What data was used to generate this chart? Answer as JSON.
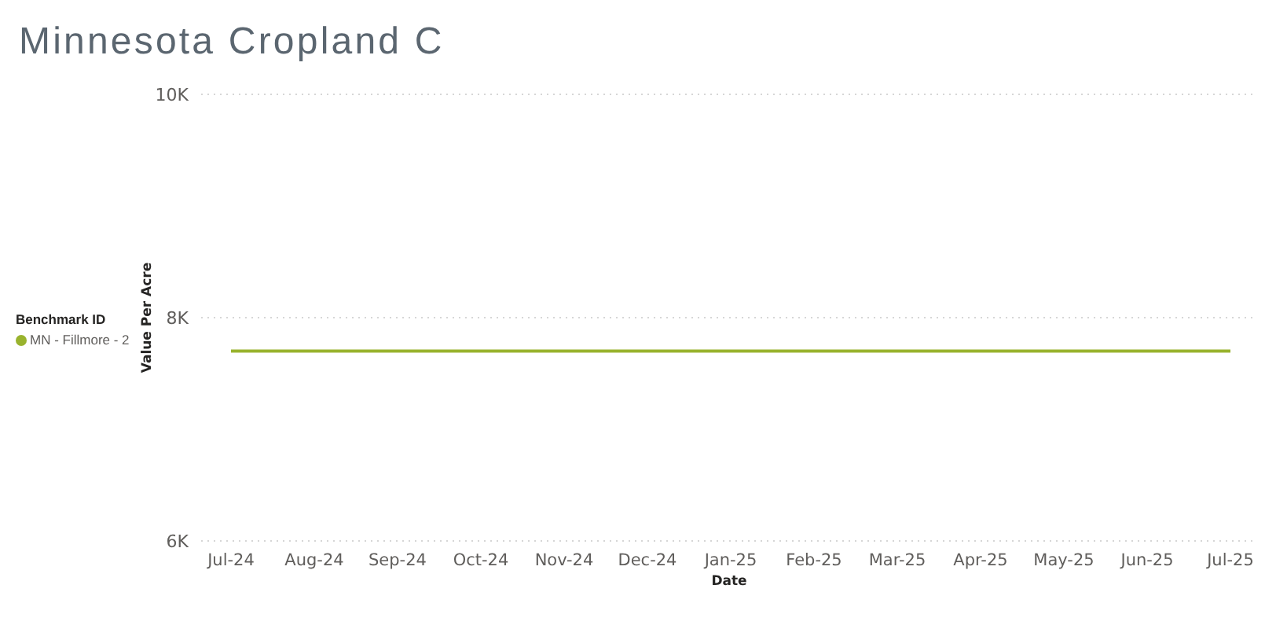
{
  "chart_data": {
    "type": "line",
    "title": "Minnesota Cropland C",
    "xlabel": "Date",
    "ylabel": "Value Per Acre",
    "legend_title": "Benchmark ID",
    "categories": [
      "Jul-24",
      "Aug-24",
      "Sep-24",
      "Oct-24",
      "Nov-24",
      "Dec-24",
      "Jan-25",
      "Feb-25",
      "Mar-25",
      "Apr-25",
      "May-25",
      "Jun-25",
      "Jul-25"
    ],
    "series": [
      {
        "name": "MN - Fillmore - 2",
        "color": "#99b32e",
        "values": [
          7700,
          7700,
          7700,
          7700,
          7700,
          7700,
          7700,
          7700,
          7700,
          7700,
          7700,
          7700,
          7700
        ]
      }
    ],
    "ylim": [
      6000,
      10000
    ],
    "yticks": [
      {
        "value": 6000,
        "label": "6K"
      },
      {
        "value": 8000,
        "label": "8K"
      },
      {
        "value": 10000,
        "label": "10K"
      }
    ],
    "grid": "y",
    "legend": "left",
    "marker": "none"
  }
}
